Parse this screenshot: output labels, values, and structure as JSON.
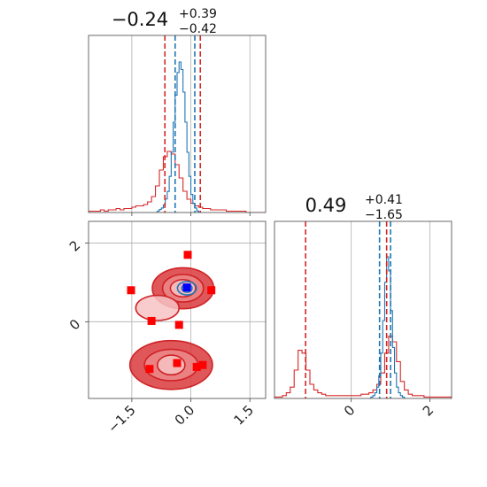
{
  "chart_data": {
    "type": "corner",
    "colors": {
      "red": "#d62728",
      "blue": "#1f77b4",
      "red_fill": "#e8777a",
      "red_dark": "#cf2327",
      "blue_marker": "#0000ff",
      "red_marker": "#ff0000",
      "grid": "#b0b0b0"
    },
    "param1": {
      "range": [
        -2.6,
        1.9
      ],
      "ticks": [
        -1.5,
        0.0,
        1.5
      ],
      "tick_labels": [
        "−1.5",
        "0.0",
        "1.5"
      ],
      "title": {
        "median": "−0.24",
        "plus": "+0.39",
        "minus": "−0.42"
      },
      "red_lines": [
        -0.66,
        0.24
      ],
      "blue_lines": [
        -0.4,
        0.1
      ],
      "red_hist": {
        "start": -2.6,
        "bin": 0.1,
        "counts": [
          0.01,
          0.01,
          0.01,
          0.02,
          0.01,
          0.02,
          0.02,
          0.03,
          0.02,
          0.03,
          0.03,
          0.04,
          0.05,
          0.05,
          0.06,
          0.08,
          0.12,
          0.2,
          0.32,
          0.42,
          0.46,
          0.44,
          0.36,
          0.26,
          0.16,
          0.1,
          0.07,
          0.05,
          0.04,
          0.03,
          0.03,
          0.02,
          0.02,
          0.02,
          0.02,
          0.01,
          0.01,
          0.01,
          0.01,
          0.01,
          0.0,
          0.0,
          0.0,
          0.0,
          0.0
        ]
      },
      "blue_hist": {
        "start": -0.9,
        "bin": 0.05,
        "counts": [
          0.0,
          0.01,
          0.02,
          0.03,
          0.05,
          0.09,
          0.14,
          0.24,
          0.4,
          0.6,
          0.78,
          0.93,
          1.0,
          0.95,
          0.8,
          0.6,
          0.4,
          0.24,
          0.12,
          0.06,
          0.03,
          0.01,
          0.0
        ]
      }
    },
    "param2": {
      "range": [
        -1.95,
        2.55
      ],
      "ticks": [
        0,
        2
      ],
      "tick_labels": [
        "0",
        "2"
      ],
      "title": {
        "median": "0.49",
        "plus": "+0.41",
        "minus": "−1.65"
      },
      "red_lines": [
        -1.16,
        0.9
      ],
      "blue_lines": [
        0.72,
        1.0
      ],
      "red_hist": {
        "start": -1.95,
        "bin": 0.1,
        "counts": [
          0.01,
          0.01,
          0.02,
          0.04,
          0.08,
          0.2,
          0.34,
          0.32,
          0.2,
          0.1,
          0.06,
          0.04,
          0.03,
          0.02,
          0.02,
          0.02,
          0.02,
          0.02,
          0.02,
          0.02,
          0.02,
          0.02,
          0.03,
          0.03,
          0.04,
          0.06,
          0.1,
          0.18,
          0.32,
          0.44,
          0.4,
          0.26,
          0.12,
          0.06,
          0.03,
          0.02,
          0.02,
          0.02,
          0.01,
          0.01,
          0.01,
          0.01,
          0.01,
          0.01,
          0.01
        ]
      },
      "blue_hist": {
        "start": 0.45,
        "bin": 0.05,
        "counts": [
          0.0,
          0.01,
          0.02,
          0.04,
          0.08,
          0.16,
          0.32,
          0.55,
          0.82,
          1.0,
          0.9,
          0.62,
          0.36,
          0.18,
          0.08,
          0.04,
          0.02,
          0.01,
          0.0
        ]
      }
    },
    "joint": {
      "red_clusters": [
        {
          "cx": -0.2,
          "cy": 0.85,
          "levels": [
            [
              0.32,
              0.22
            ],
            [
              0.52,
              0.35
            ],
            [
              0.78,
              0.52
            ]
          ]
        },
        {
          "cx": -0.5,
          "cy": -1.1,
          "levels": [
            [
              0.35,
              0.25
            ],
            [
              0.68,
              0.4
            ],
            [
              1.05,
              0.62
            ]
          ]
        },
        {
          "cx": -0.85,
          "cy": 0.35,
          "levels": [
            [
              0.55,
              0.32
            ]
          ]
        }
      ],
      "blue_cluster": {
        "cx": -0.1,
        "cy": 0.85,
        "levels": [
          [
            0.13,
            0.1
          ],
          [
            0.24,
            0.17
          ]
        ]
      },
      "red_markers": [
        [
          -0.08,
          1.7
        ],
        [
          -1.52,
          0.8
        ],
        [
          -1.0,
          0.02
        ],
        [
          -0.3,
          -0.08
        ],
        [
          0.52,
          0.8
        ],
        [
          -0.35,
          -1.05
        ],
        [
          -1.05,
          -1.2
        ],
        [
          0.3,
          -1.1
        ],
        [
          0.15,
          -1.15
        ]
      ],
      "blue_markers": [
        [
          -0.1,
          0.87
        ]
      ]
    }
  }
}
